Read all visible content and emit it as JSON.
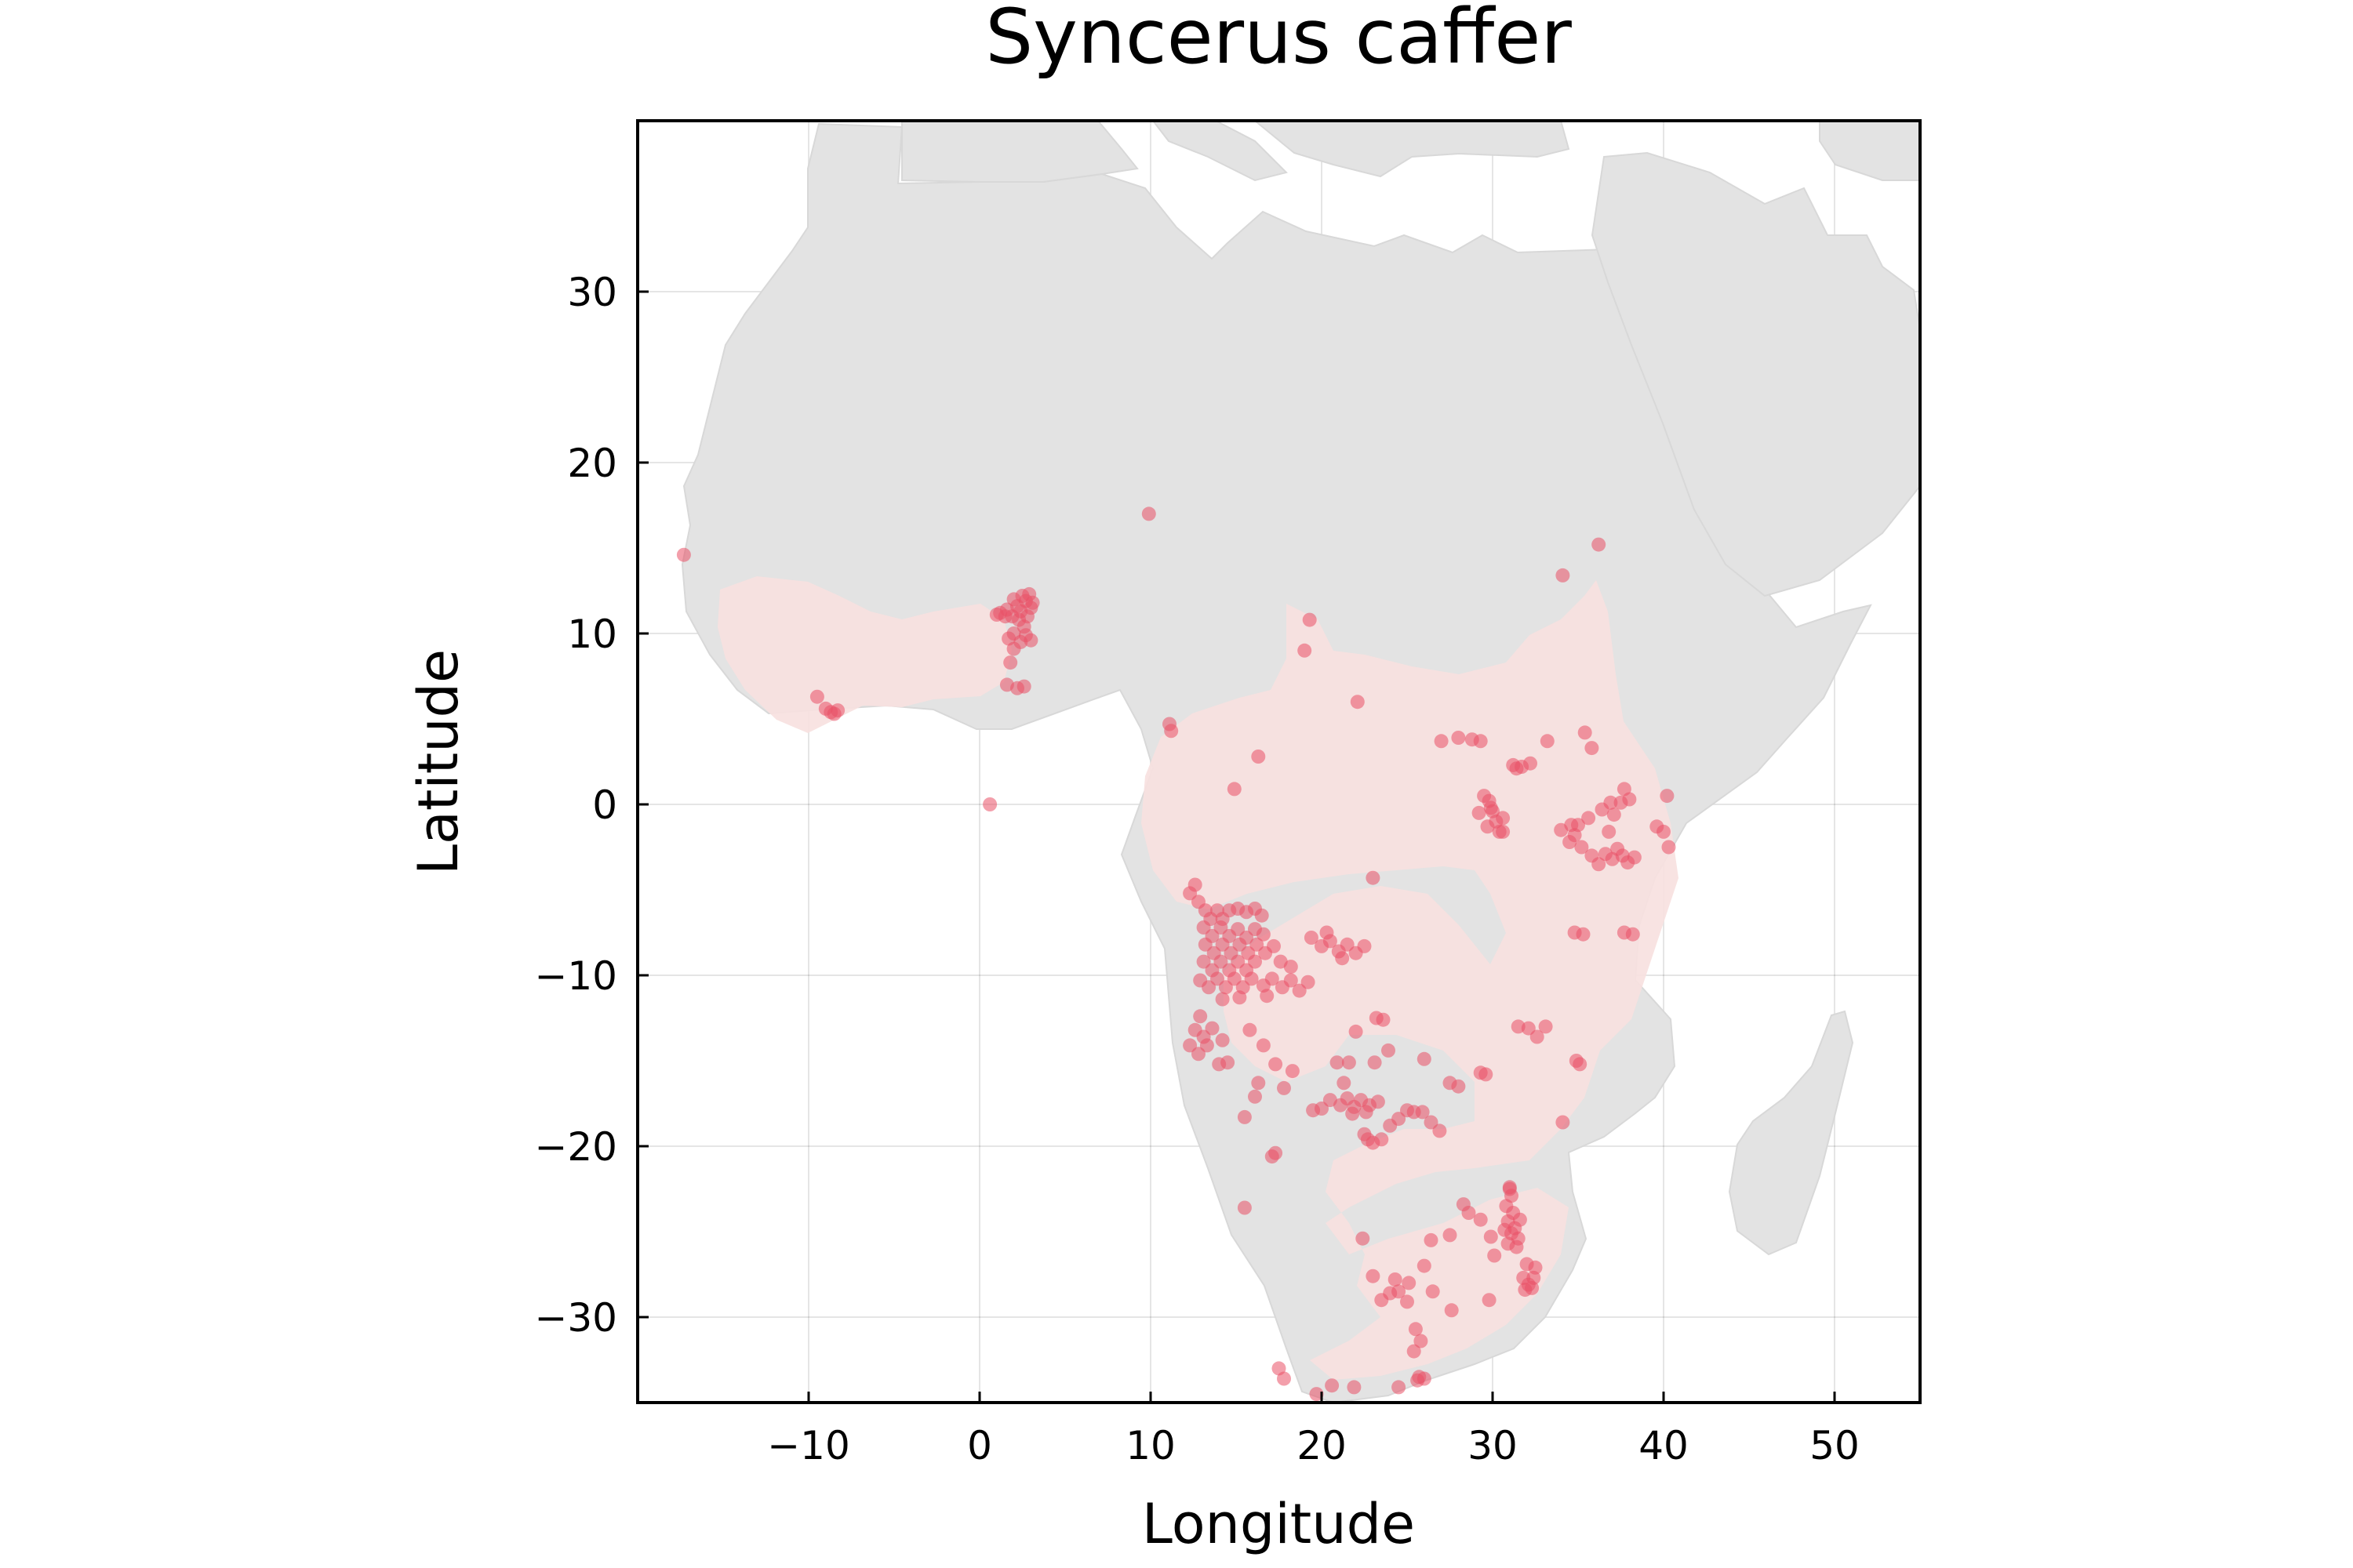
{
  "chart_data": {
    "type": "scatter",
    "title": "Syncerus caffer",
    "xlabel": "Longitude",
    "ylabel": "Latitude",
    "xlim": [
      -20,
      55
    ],
    "ylim": [
      -35,
      40
    ],
    "xticks": [
      -10,
      0,
      10,
      20,
      30,
      40,
      50
    ],
    "yticks": [
      -30,
      -20,
      -10,
      0,
      10,
      20,
      30
    ],
    "grid": true,
    "legend": "none",
    "colors": {
      "points": "#ea5066",
      "land": "#e3e3e3",
      "range": "#f7e1e0"
    },
    "series": [
      {
        "points": [
          [
            -17.3,
            14.6
          ],
          [
            -9.5,
            6.3
          ],
          [
            -9.0,
            5.6
          ],
          [
            -8.7,
            5.4
          ],
          [
            -8.5,
            5.3
          ],
          [
            -8.3,
            5.5
          ],
          [
            1.2,
            11.2
          ],
          [
            1.6,
            11.4
          ],
          [
            1.9,
            11.0
          ],
          [
            2.2,
            11.6
          ],
          [
            2.5,
            12.2
          ],
          [
            2.7,
            11.9
          ],
          [
            2.9,
            12.3
          ],
          [
            3.0,
            11.5
          ],
          [
            2.3,
            10.8
          ],
          [
            2.6,
            10.4
          ],
          [
            1.5,
            11.0
          ],
          [
            1.0,
            11.1
          ],
          [
            2.8,
            11.0
          ],
          [
            3.1,
            11.8
          ],
          [
            2.0,
            12.0
          ],
          [
            2.4,
            11.3
          ],
          [
            2.7,
            9.9
          ],
          [
            3.0,
            9.6
          ],
          [
            2.4,
            9.5
          ],
          [
            2.0,
            9.1
          ],
          [
            1.8,
            8.3
          ],
          [
            1.6,
            7.0
          ],
          [
            2.2,
            6.8
          ],
          [
            2.6,
            6.9
          ],
          [
            0.6,
            0.0
          ],
          [
            9.9,
            17.0
          ],
          [
            2.0,
            10.0
          ],
          [
            1.7,
            9.7
          ],
          [
            11.1,
            4.7
          ],
          [
            11.2,
            4.3
          ],
          [
            16.3,
            2.8
          ],
          [
            14.9,
            0.9
          ],
          [
            19.3,
            10.8
          ],
          [
            19.0,
            9.0
          ],
          [
            22.1,
            6.0
          ],
          [
            23.0,
            -4.3
          ],
          [
            27.0,
            3.7
          ],
          [
            28.0,
            3.9
          ],
          [
            28.8,
            3.8
          ],
          [
            29.3,
            3.7
          ],
          [
            31.2,
            2.3
          ],
          [
            31.7,
            2.2
          ],
          [
            32.2,
            2.4
          ],
          [
            31.4,
            2.1
          ],
          [
            33.2,
            3.7
          ],
          [
            29.5,
            0.5
          ],
          [
            29.8,
            0.2
          ],
          [
            30.0,
            -0.4
          ],
          [
            29.7,
            -1.3
          ],
          [
            30.2,
            -1.0
          ],
          [
            30.6,
            -0.8
          ],
          [
            29.2,
            -0.5
          ],
          [
            30.4,
            -1.6
          ],
          [
            29.9,
            -0.2
          ],
          [
            30.6,
            -1.6
          ],
          [
            34.0,
            -1.5
          ],
          [
            34.5,
            -2.2
          ],
          [
            34.8,
            -1.8
          ],
          [
            35.2,
            -2.5
          ],
          [
            35.0,
            -1.2
          ],
          [
            35.6,
            -0.8
          ],
          [
            35.8,
            -3.0
          ],
          [
            36.2,
            -3.5
          ],
          [
            36.6,
            -2.9
          ],
          [
            37.0,
            -3.2
          ],
          [
            37.3,
            -2.6
          ],
          [
            37.6,
            -3.0
          ],
          [
            37.9,
            -3.4
          ],
          [
            38.3,
            -3.1
          ],
          [
            36.8,
            -1.6
          ],
          [
            37.1,
            -0.6
          ],
          [
            37.5,
            0.1
          ],
          [
            38.0,
            0.3
          ],
          [
            37.7,
            0.9
          ],
          [
            36.4,
            -0.3
          ],
          [
            36.9,
            0.1
          ],
          [
            35.4,
            4.2
          ],
          [
            35.8,
            3.3
          ],
          [
            34.6,
            -1.2
          ],
          [
            39.6,
            -1.3
          ],
          [
            40.0,
            -1.6
          ],
          [
            40.3,
            -2.5
          ],
          [
            40.2,
            0.5
          ],
          [
            34.1,
            13.4
          ],
          [
            36.2,
            15.2
          ],
          [
            34.8,
            -7.5
          ],
          [
            35.3,
            -7.6
          ],
          [
            38.2,
            -7.6
          ],
          [
            37.7,
            -7.5
          ],
          [
            12.3,
            -5.2
          ],
          [
            12.6,
            -4.7
          ],
          [
            12.8,
            -5.7
          ],
          [
            13.2,
            -6.2
          ],
          [
            13.5,
            -6.7
          ],
          [
            13.9,
            -6.2
          ],
          [
            14.2,
            -6.7
          ],
          [
            14.6,
            -6.2
          ],
          [
            15.1,
            -6.1
          ],
          [
            15.6,
            -6.3
          ],
          [
            16.1,
            -6.1
          ],
          [
            16.5,
            -6.5
          ],
          [
            13.1,
            -7.2
          ],
          [
            13.6,
            -7.7
          ],
          [
            14.1,
            -7.2
          ],
          [
            14.6,
            -7.7
          ],
          [
            15.1,
            -7.3
          ],
          [
            15.6,
            -7.8
          ],
          [
            16.1,
            -7.3
          ],
          [
            16.6,
            -7.6
          ],
          [
            13.2,
            -8.2
          ],
          [
            13.7,
            -8.7
          ],
          [
            14.2,
            -8.2
          ],
          [
            14.7,
            -8.7
          ],
          [
            15.2,
            -8.2
          ],
          [
            15.7,
            -8.7
          ],
          [
            16.2,
            -8.2
          ],
          [
            16.7,
            -8.7
          ],
          [
            17.2,
            -8.3
          ],
          [
            13.1,
            -9.2
          ],
          [
            13.6,
            -9.7
          ],
          [
            14.1,
            -9.2
          ],
          [
            14.6,
            -9.7
          ],
          [
            15.1,
            -9.2
          ],
          [
            15.6,
            -9.7
          ],
          [
            16.1,
            -9.2
          ],
          [
            17.6,
            -9.2
          ],
          [
            18.2,
            -9.5
          ],
          [
            12.9,
            -10.3
          ],
          [
            13.4,
            -10.7
          ],
          [
            13.9,
            -10.2
          ],
          [
            14.4,
            -10.7
          ],
          [
            14.9,
            -10.2
          ],
          [
            15.4,
            -10.7
          ],
          [
            15.9,
            -10.2
          ],
          [
            16.6,
            -10.6
          ],
          [
            17.1,
            -10.2
          ],
          [
            17.7,
            -10.7
          ],
          [
            18.2,
            -10.3
          ],
          [
            18.7,
            -10.9
          ],
          [
            19.2,
            -10.4
          ],
          [
            16.8,
            -11.2
          ],
          [
            15.2,
            -11.3
          ],
          [
            14.2,
            -11.4
          ],
          [
            19.4,
            -7.8
          ],
          [
            20.0,
            -8.3
          ],
          [
            20.5,
            -8.0
          ],
          [
            21.0,
            -8.6
          ],
          [
            21.5,
            -8.2
          ],
          [
            22.0,
            -8.7
          ],
          [
            22.5,
            -8.3
          ],
          [
            21.2,
            -9.0
          ],
          [
            20.3,
            -7.5
          ],
          [
            12.6,
            -13.2
          ],
          [
            13.1,
            -13.6
          ],
          [
            12.3,
            -14.1
          ],
          [
            12.8,
            -14.6
          ],
          [
            13.3,
            -14.1
          ],
          [
            13.6,
            -13.1
          ],
          [
            12.9,
            -12.4
          ],
          [
            14.2,
            -13.8
          ],
          [
            14.5,
            -15.1
          ],
          [
            14.0,
            -15.2
          ],
          [
            15.8,
            -13.2
          ],
          [
            16.6,
            -14.1
          ],
          [
            17.3,
            -15.2
          ],
          [
            16.3,
            -16.3
          ],
          [
            17.8,
            -16.6
          ],
          [
            18.3,
            -15.6
          ],
          [
            16.1,
            -17.1
          ],
          [
            15.5,
            -18.3
          ],
          [
            17.3,
            -20.4
          ],
          [
            17.1,
            -20.6
          ],
          [
            15.5,
            -23.6
          ],
          [
            20.9,
            -15.1
          ],
          [
            21.6,
            -15.1
          ],
          [
            21.3,
            -16.3
          ],
          [
            20.5,
            -17.3
          ],
          [
            21.1,
            -17.6
          ],
          [
            21.5,
            -17.2
          ],
          [
            21.9,
            -17.7
          ],
          [
            22.3,
            -17.3
          ],
          [
            22.8,
            -17.6
          ],
          [
            23.3,
            -17.4
          ],
          [
            22.6,
            -18.0
          ],
          [
            21.8,
            -18.1
          ],
          [
            19.5,
            -17.9
          ],
          [
            20.0,
            -17.8
          ],
          [
            22.5,
            -19.3
          ],
          [
            23.0,
            -19.8
          ],
          [
            23.5,
            -19.6
          ],
          [
            24.0,
            -18.8
          ],
          [
            24.5,
            -18.4
          ],
          [
            25.0,
            -17.9
          ],
          [
            25.4,
            -18.0
          ],
          [
            25.9,
            -18.0
          ],
          [
            26.4,
            -18.6
          ],
          [
            26.9,
            -19.1
          ],
          [
            22.7,
            -19.6
          ],
          [
            23.2,
            -12.5
          ],
          [
            23.6,
            -12.6
          ],
          [
            22.0,
            -13.3
          ],
          [
            23.9,
            -14.4
          ],
          [
            23.1,
            -15.1
          ],
          [
            26.0,
            -14.9
          ],
          [
            27.5,
            -16.3
          ],
          [
            28.0,
            -16.5
          ],
          [
            29.3,
            -15.7
          ],
          [
            29.6,
            -15.8
          ],
          [
            31.5,
            -13.0
          ],
          [
            32.1,
            -13.1
          ],
          [
            33.1,
            -13.0
          ],
          [
            32.6,
            -13.6
          ],
          [
            34.9,
            -15.0
          ],
          [
            35.1,
            -15.2
          ],
          [
            34.1,
            -18.6
          ],
          [
            31.0,
            -22.5
          ],
          [
            31.1,
            -22.9
          ],
          [
            30.8,
            -23.5
          ],
          [
            31.2,
            -23.9
          ],
          [
            30.9,
            -24.4
          ],
          [
            31.3,
            -24.8
          ],
          [
            31.1,
            -25.1
          ],
          [
            31.5,
            -25.4
          ],
          [
            31.4,
            -25.9
          ],
          [
            30.9,
            -25.7
          ],
          [
            31.6,
            -24.3
          ],
          [
            30.7,
            -24.9
          ],
          [
            31.0,
            -22.4
          ],
          [
            31.8,
            -27.7
          ],
          [
            32.1,
            -28.1
          ],
          [
            32.4,
            -27.7
          ],
          [
            31.9,
            -28.4
          ],
          [
            32.3,
            -28.3
          ],
          [
            32.5,
            -27.1
          ],
          [
            32.0,
            -26.9
          ],
          [
            30.1,
            -26.4
          ],
          [
            29.3,
            -24.3
          ],
          [
            29.9,
            -25.3
          ],
          [
            28.3,
            -23.4
          ],
          [
            28.6,
            -23.9
          ],
          [
            26.4,
            -25.5
          ],
          [
            27.5,
            -25.2
          ],
          [
            27.6,
            -29.6
          ],
          [
            26.5,
            -28.5
          ],
          [
            26.0,
            -27.0
          ],
          [
            29.8,
            -29.0
          ],
          [
            23.5,
            -29.0
          ],
          [
            24.0,
            -28.6
          ],
          [
            24.5,
            -28.5
          ],
          [
            25.0,
            -29.1
          ],
          [
            24.3,
            -27.8
          ],
          [
            25.1,
            -28.0
          ],
          [
            23.0,
            -27.6
          ],
          [
            22.4,
            -25.4
          ],
          [
            25.5,
            -30.7
          ],
          [
            25.4,
            -32.0
          ],
          [
            25.7,
            -33.5
          ],
          [
            25.6,
            -33.7
          ],
          [
            26.0,
            -33.6
          ],
          [
            24.5,
            -34.1
          ],
          [
            25.8,
            -31.4
          ],
          [
            20.6,
            -34.0
          ],
          [
            19.7,
            -34.5
          ],
          [
            21.9,
            -34.1
          ],
          [
            17.5,
            -33.0
          ],
          [
            17.8,
            -33.6
          ]
        ]
      }
    ]
  }
}
